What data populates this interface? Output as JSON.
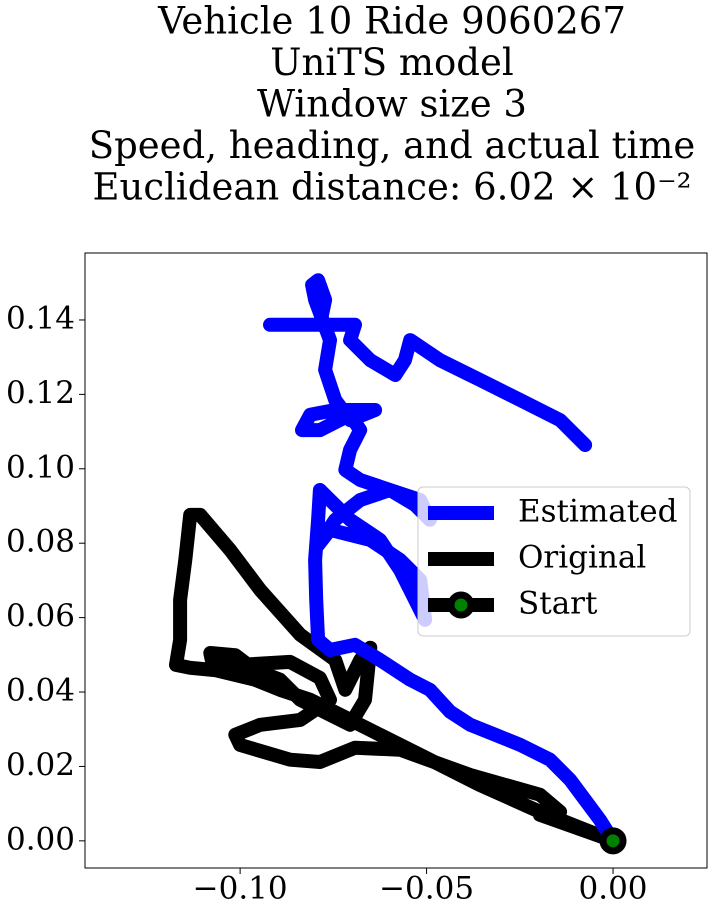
{
  "chart_data": {
    "type": "line",
    "title": [
      "Vehicle 10 Ride 9060267",
      "UniTS model",
      "Window size 3",
      "Speed, heading, and actual time",
      "Euclidean distance: 6.02 × 10⁻²"
    ],
    "xlim": [
      -0.1416,
      0.0252
    ],
    "ylim": [
      -0.0073,
      0.158
    ],
    "xticks": [
      {
        "value": -0.1,
        "label": "−0.10"
      },
      {
        "value": -0.05,
        "label": "−0.05"
      },
      {
        "value": 0,
        "label": "0.00"
      }
    ],
    "yticks": [
      {
        "value": 0,
        "label": "0.00"
      },
      {
        "value": 0.02,
        "label": "0.02"
      },
      {
        "value": 0.04,
        "label": "0.04"
      },
      {
        "value": 0.06,
        "label": "0.06"
      },
      {
        "value": 0.08,
        "label": "0.08"
      },
      {
        "value": 0.1,
        "label": "0.10"
      },
      {
        "value": 0.12,
        "label": "0.12"
      },
      {
        "value": 0.14,
        "label": "0.14"
      }
    ],
    "legend": "center right",
    "series": [
      {
        "name": "Estimated",
        "color": "#0000ff",
        "x": [
          0,
          -0.0035,
          -0.0075,
          -0.0115,
          -0.0169,
          -0.0249,
          -0.0316,
          -0.0383,
          -0.0437,
          -0.0491,
          -0.0544,
          -0.0625,
          -0.0692,
          -0.0759,
          -0.0791,
          -0.0796,
          -0.0799,
          -0.0791,
          -0.0786,
          -0.0759,
          -0.0705,
          -0.0625,
          -0.0571,
          -0.0544,
          -0.0504,
          -0.0517,
          -0.0571,
          -0.0651,
          -0.0759,
          -0.0791,
          -0.0745,
          -0.0678,
          -0.0598,
          -0.0531,
          -0.0491,
          -0.0517,
          -0.0598,
          -0.0678,
          -0.0718,
          -0.0705,
          -0.0678,
          -0.0705,
          -0.0786,
          -0.0834,
          -0.0812,
          -0.0745,
          -0.0638,
          -0.0705,
          -0.0745,
          -0.0772,
          -0.0759,
          -0.0799,
          -0.0807,
          -0.0791,
          -0.0772,
          -0.0786,
          -0.0866,
          -0.092,
          -0.0839,
          -0.0732,
          -0.0692,
          -0.0705,
          -0.0651,
          -0.0584,
          -0.0558,
          -0.0544,
          -0.0464,
          -0.0357,
          -0.0249,
          -0.0142,
          -0.0075
        ],
        "y": [
          0,
          0.0056,
          0.011,
          0.0164,
          0.0218,
          0.0258,
          0.0285,
          0.0312,
          0.0347,
          0.0406,
          0.0433,
          0.0486,
          0.0527,
          0.0513,
          0.054,
          0.0648,
          0.0755,
          0.0863,
          0.0943,
          0.0916,
          0.0863,
          0.0809,
          0.0728,
          0.0674,
          0.0594,
          0.0701,
          0.0755,
          0.0809,
          0.0836,
          0.0795,
          0.0863,
          0.0916,
          0.0943,
          0.0903,
          0.0863,
          0.0916,
          0.0943,
          0.097,
          0.0997,
          0.1051,
          0.1104,
          0.1145,
          0.1104,
          0.1104,
          0.1145,
          0.1158,
          0.1158,
          0.1131,
          0.1185,
          0.1266,
          0.1346,
          0.1454,
          0.1494,
          0.1507,
          0.1454,
          0.1387,
          0.1387,
          0.1387,
          0.1387,
          0.1387,
          0.1387,
          0.1346,
          0.1292,
          0.1252,
          0.1292,
          0.1346,
          0.1292,
          0.1239,
          0.1185,
          0.1131,
          0.1064
        ]
      },
      {
        "name": "Original",
        "color": "#000000",
        "x": [
          0,
          -0.0088,
          -0.0196,
          -0.0357,
          -0.0491,
          -0.0625,
          -0.0732,
          -0.0812,
          -0.0893,
          -0.096,
          -0.1067,
          -0.1134,
          -0.1172,
          -0.1161,
          -0.1161,
          -0.1147,
          -0.1134,
          -0.1107,
          -0.1027,
          -0.0946,
          -0.0839,
          -0.0745,
          -0.0718,
          -0.0678,
          -0.0651,
          -0.0665,
          -0.0705,
          -0.0759,
          -0.0839,
          -0.0893,
          -0.096,
          -0.1013,
          -0.108,
          -0.1075,
          -0.1,
          -0.0866,
          -0.0786,
          -0.0759,
          -0.0839,
          -0.0946,
          -0.1013,
          -0.1,
          -0.0866,
          -0.0786,
          -0.0692,
          -0.0571,
          -0.0383,
          -0.0196,
          -0.0142,
          -0.0196,
          0
        ],
        "y": [
          0,
          0.0035,
          0.0078,
          0.015,
          0.0218,
          0.0285,
          0.0339,
          0.0379,
          0.0406,
          0.0433,
          0.0459,
          0.0465,
          0.0473,
          0.054,
          0.0648,
          0.0755,
          0.0876,
          0.0876,
          0.0782,
          0.0674,
          0.0554,
          0.0486,
          0.0406,
          0.0486,
          0.0519,
          0.0379,
          0.0312,
          0.0339,
          0.0379,
          0.0433,
          0.0459,
          0.0499,
          0.0505,
          0.0481,
          0.0473,
          0.0481,
          0.0438,
          0.0379,
          0.0325,
          0.0312,
          0.0285,
          0.0258,
          0.0218,
          0.0212,
          0.025,
          0.0245,
          0.0177,
          0.0124,
          0.0078,
          0.007,
          0
        ]
      }
    ],
    "start": {
      "name": "Start",
      "x": 0,
      "y": 0,
      "color": "#008000",
      "edgecolor": "#000000"
    }
  }
}
